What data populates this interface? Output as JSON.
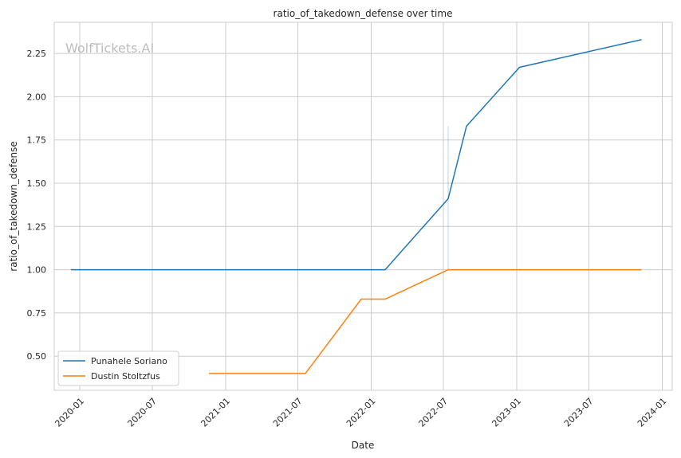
{
  "chart_data": {
    "type": "line",
    "title": "ratio_of_takedown_defense over time",
    "xlabel": "Date",
    "ylabel": "ratio_of_takedown_defense",
    "watermark": "WolfTickets.AI",
    "xlim": [
      "2019-10-29",
      "2024-01-26"
    ],
    "ylim": [
      0.303,
      2.43
    ],
    "xticks": [
      "2020-01",
      "2020-07",
      "2021-01",
      "2021-07",
      "2022-01",
      "2022-07",
      "2023-01",
      "2023-07",
      "2024-01"
    ],
    "yticks": [
      0.5,
      0.75,
      1.0,
      1.25,
      1.5,
      1.75,
      2.0,
      2.25
    ],
    "ytick_labels": [
      "0.50",
      "0.75",
      "1.00",
      "1.25",
      "1.50",
      "1.75",
      "2.00",
      "2.25"
    ],
    "grid": true,
    "legend_position": "lower-left",
    "series": [
      {
        "name": "Punahele Soriano",
        "color": "#1f77b4",
        "x": [
          "2019-12-10",
          "2022-02-05",
          "2022-07-13",
          "2022-08-28",
          "2023-01-08",
          "2023-11-10"
        ],
        "values": [
          1.0,
          1.0,
          1.41,
          1.83,
          2.17,
          2.33
        ]
      },
      {
        "name": "Dustin Stoltzfus",
        "color": "#ff7f0e",
        "x": [
          "2020-11-20",
          "2021-07-20",
          "2021-12-07",
          "2022-02-05",
          "2022-07-13",
          "2023-11-10"
        ],
        "values": [
          0.4,
          0.4,
          0.83,
          0.83,
          1.0,
          1.0
        ]
      }
    ],
    "bands": [
      {
        "series": "Punahele Soriano",
        "x": "2022-07-13",
        "low": 1.0,
        "high": 1.83
      }
    ]
  }
}
